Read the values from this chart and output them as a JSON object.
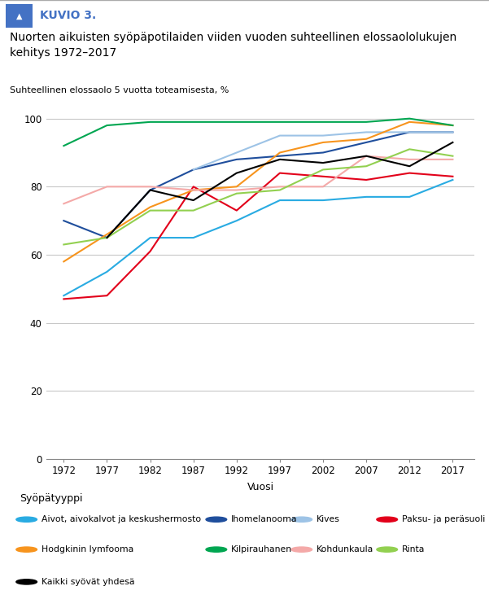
{
  "title": "Nuorten aikuisten syöpäpotilaiden viiden vuoden suhteellinen elossaololukujen\nkehitys 1972–2017",
  "ylabel": "Suhteellinen elossaolo 5 vuotta toteamisesta, %",
  "xlabel": "Vuosi",
  "legend_title": "Syöpätyyppi",
  "kuvio": "KUVIO 3.",
  "years": [
    1972,
    1977,
    1982,
    1987,
    1992,
    1997,
    2002,
    2007,
    2012,
    2017
  ],
  "series": [
    {
      "label": "Aivot, aivokalvot ja keskushermosto",
      "color": "#29ABE2",
      "values": [
        48,
        55,
        65,
        65,
        70,
        76,
        76,
        77,
        77,
        82
      ]
    },
    {
      "label": "Ihomelanooma",
      "color": "#1F4E9C",
      "values": [
        70,
        65,
        79,
        85,
        88,
        89,
        90,
        93,
        96,
        96
      ]
    },
    {
      "label": "Kives",
      "color": "#9DC3E6",
      "values": [
        null,
        null,
        null,
        85,
        90,
        95,
        95,
        96,
        96,
        96
      ]
    },
    {
      "label": "Paksu- ja peräsuoli",
      "color": "#E2001A",
      "values": [
        47,
        48,
        61,
        80,
        73,
        84,
        83,
        82,
        84,
        83
      ]
    },
    {
      "label": "Hodgkinin lymfooma",
      "color": "#F7941D",
      "values": [
        58,
        66,
        74,
        79,
        80,
        90,
        93,
        94,
        99,
        98
      ]
    },
    {
      "label": "Kilpirauhanen",
      "color": "#00A651",
      "values": [
        92,
        98,
        99,
        99,
        99,
        99,
        99,
        99,
        100,
        98
      ]
    },
    {
      "label": "Kohdunkaula",
      "color": "#F4A9A8",
      "values": [
        75,
        80,
        80,
        79,
        79,
        80,
        80,
        89,
        88,
        88
      ]
    },
    {
      "label": "Rinta",
      "color": "#92D050",
      "values": [
        63,
        65,
        73,
        73,
        78,
        79,
        85,
        86,
        91,
        89
      ]
    },
    {
      "label": "Kaikki syövät yhdesä",
      "color": "#000000",
      "values": [
        null,
        65,
        79,
        76,
        84,
        88,
        87,
        89,
        86,
        93
      ]
    }
  ],
  "ylim": [
    0,
    105
  ],
  "yticks": [
    0,
    20,
    40,
    60,
    80,
    100
  ],
  "background_color": "#ffffff",
  "grid_color": "#c8c8c8",
  "header_color": "#4472C4",
  "header_text_color": "#4472C4",
  "legend_items": [
    [
      "Aivot, aivokalvot ja keskushermosto",
      "#29ABE2"
    ],
    [
      "Ihomelanooma",
      "#1F4E9C"
    ],
    [
      "Kives",
      "#9DC3E6"
    ],
    [
      "Paksu- ja peräsuoli",
      "#E2001A"
    ],
    [
      "Hodgkinin lymfooma",
      "#F7941D"
    ],
    [
      "Kilpirauhanen",
      "#00A651"
    ],
    [
      "Kohdunkaula",
      "#F4A9A8"
    ],
    [
      "Rinta",
      "#92D050"
    ],
    [
      "Kaikki syövät yhdesä",
      "#000000"
    ]
  ]
}
